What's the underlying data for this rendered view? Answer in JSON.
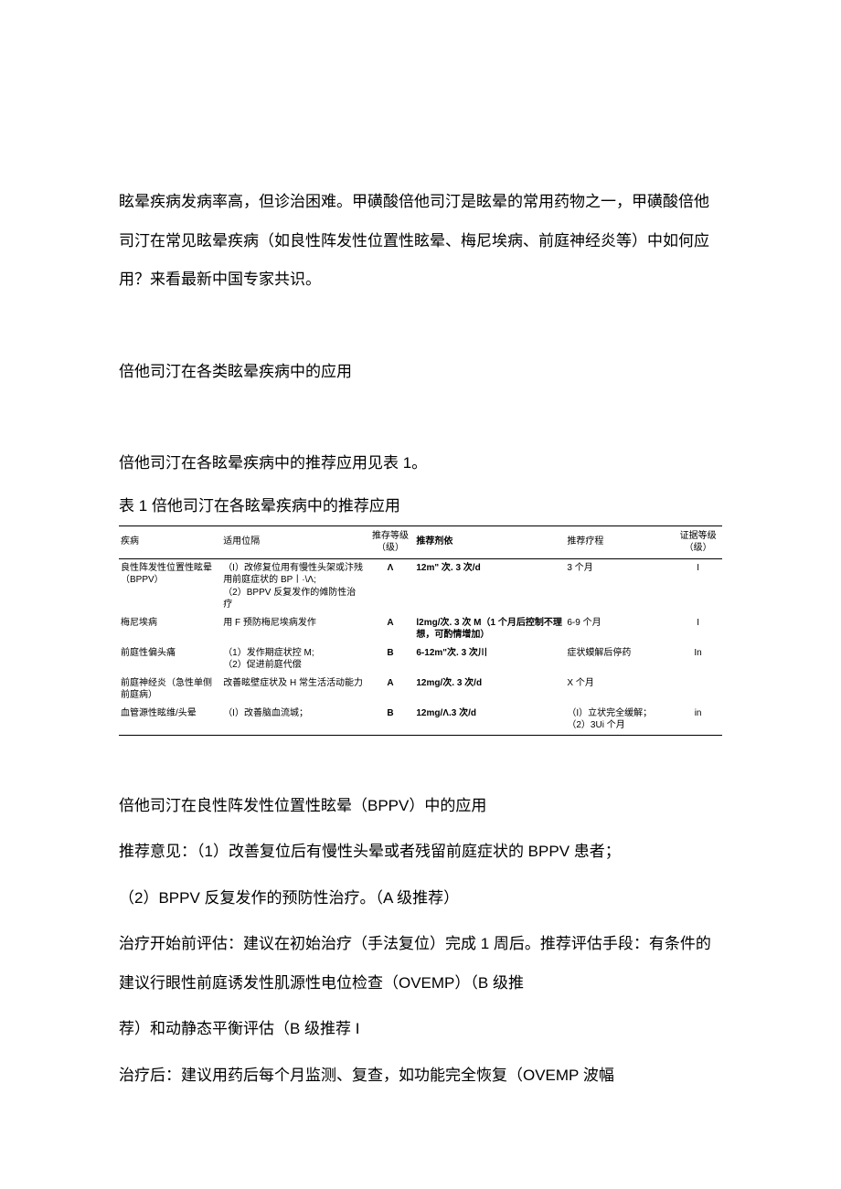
{
  "intro": "眩晕疾病发病率高，但诊治困难。甲磺酸倍他司汀是眩晕的常用药物之一，甲磺酸倍他司汀在常见眩晕疾病（如良性阵发性位置性眩晕、梅尼埃病、前庭神经炎等）中如何应用？来看最新中国专家共识。",
  "heading1": "倍他司汀在各类眩晕疾病中的应用",
  "line_ref": "倍他司汀在各眩晕疾病中的推荐应用见表 1。",
  "table_caption": "表 1 倍他司汀在各眩晕疾病中的推荐应用",
  "table": {
    "columns": [
      "疾病",
      "适用位隔",
      "推存等级（级）",
      "推荐剂依",
      "推荐疗程",
      "证据等级（级）"
    ],
    "rows": [
      {
        "disease": "良性阵发性位置性眩晕（BPPV）",
        "indication": "（I）改修复位用有慢性头架或汴残用前庭症状的 BP丨·\\Λ;\n（2）BPPV 反复发作的傩防性治疗",
        "reclevel": "Λ",
        "dosage": "12m\" 次. 3 次/d",
        "course": "3 个月",
        "evidence": "I"
      },
      {
        "disease": "梅尼埃病",
        "indication": "用 F 预防梅尼埃病发作",
        "reclevel": "A",
        "dosage": "l2mg/次. 3 次 M（1 个月后控制不理想，可酌情增加）",
        "course": "6-9 个月",
        "evidence": "I"
      },
      {
        "disease": "前庭性偏头痛",
        "indication": "（1）发作期症状控 M;\n（2）促进前庭代偿",
        "reclevel": "B",
        "dosage": "6-12m\"次. 3 次川",
        "course": "症状蟆解后停药",
        "evidence": "In"
      },
      {
        "disease": "前庭神经炎（急性单侧前庭病）",
        "indication": "改善眩壁症状及 H 常生活活动能力",
        "reclevel": "A",
        "dosage": "12mg/次. 3 次/d",
        "course": "X 个月",
        "evidence": ""
      },
      {
        "disease": "血管源性眩维/头晕",
        "indication": "（I）改善脑血流城；",
        "reclevel": "B",
        "dosage": "12mg/Λ.3 次/d",
        "course": "（I）立状完全缓解；\n（2）3Ui 个月",
        "evidence": "in"
      }
    ]
  },
  "bppv_heading": "倍他司汀在良性阵发性位置性眩晕（BPPV）中的应用",
  "bppv_rec": "推荐意见：（1）改善复位后有慢性头晕或者残留前庭症状的 BPPV 患者；",
  "bppv_rec2": "（2）BPPV 反复发作的预防性治疗。（A 级推荐）",
  "bppv_pre": "治疗开始前评估：建议在初始治疗（手法复位）完成 1 周后。推荐评估手段：有条件的建议行眼性前庭诱发性肌源性电位检查（OVEMP）（B 级推",
  "bppv_pre2": "荐）和动静态平衡评估（B 级推荐 I",
  "bppv_post": "治疗后：建议用药后每个月监测、复查，如功能完全恢复（OVEMP 波幅"
}
